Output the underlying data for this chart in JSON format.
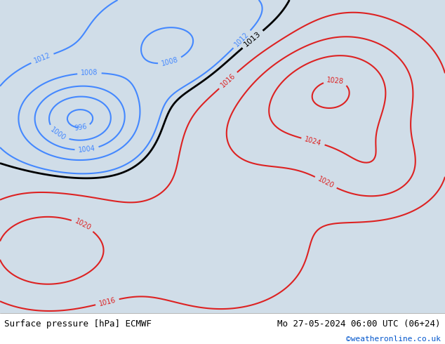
{
  "title_left": "Surface pressure [hPa] ECMWF",
  "title_right": "Mo 27-05-2024 06:00 UTC (06+24)",
  "credit": "©weatheronline.co.uk",
  "credit_color": "#0055cc",
  "bg_color": "#d4e8b0",
  "footer_bg": "#ffffff",
  "fig_width": 6.34,
  "fig_height": 4.9,
  "dpi": 100
}
